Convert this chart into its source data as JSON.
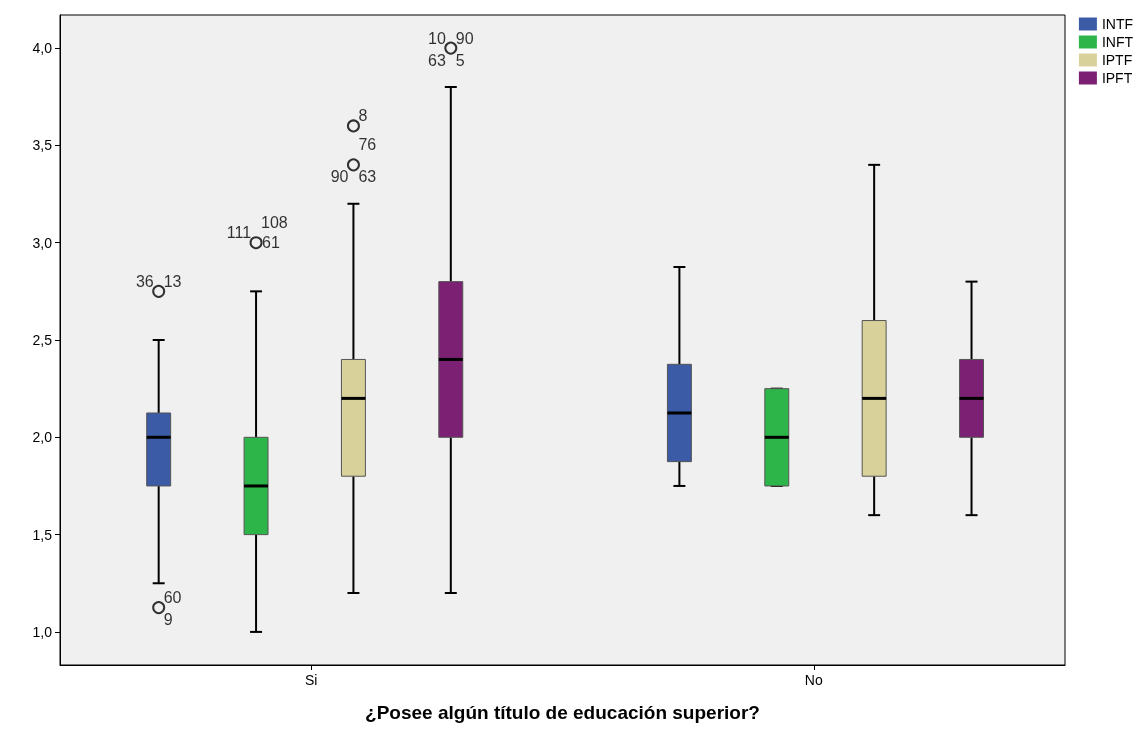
{
  "chart_data": {
    "type": "box",
    "xlabel": "¿Posee algún título de educación superior?",
    "categories": [
      "Si",
      "No"
    ],
    "ylim": [
      0.83,
      4.17
    ],
    "yticks": [
      {
        "value": 1,
        "label": "1,0"
      },
      {
        "value": 1.5,
        "label": "1,5"
      },
      {
        "value": 2,
        "label": "2,0"
      },
      {
        "value": 2.5,
        "label": "2,5"
      },
      {
        "value": 3,
        "label": "3,0"
      },
      {
        "value": 3.5,
        "label": "3,5"
      },
      {
        "value": 4,
        "label": "4,0"
      }
    ],
    "grid": false,
    "legend": "top right",
    "series": [
      {
        "name": "INTF",
        "color": "#3b5ba7",
        "boxes": [
          {
            "low": 1.25,
            "q1": 1.75,
            "median": 2.0,
            "q3": 2.125,
            "high": 2.5,
            "outliers": [
              2.75,
              1.125
            ]
          },
          {
            "low": 1.75,
            "q1": 1.875,
            "median": 2.125,
            "q3": 2.375,
            "high": 2.875
          }
        ]
      },
      {
        "name": "INFT",
        "color": "#2db54a",
        "boxes": [
          {
            "low": 1.0,
            "q1": 1.5,
            "median": 1.75,
            "q3": 2.0,
            "high": 2.75,
            "outliers": [
              3.0
            ]
          },
          {
            "low": 1.75,
            "q1": 1.75,
            "median": 2.0,
            "q3": 2.25,
            "high": 2.25
          }
        ]
      },
      {
        "name": "IPTF",
        "color": "#d9d19a",
        "boxes": [
          {
            "low": 1.2,
            "q1": 1.8,
            "median": 2.2,
            "q3": 2.4,
            "high": 3.2,
            "outliers": [
              3.4,
              3.6
            ]
          },
          {
            "low": 1.6,
            "q1": 1.8,
            "median": 2.2,
            "q3": 2.6,
            "high": 3.4
          }
        ]
      },
      {
        "name": "IPFT",
        "color": "#7b2073",
        "boxes": [
          {
            "low": 1.2,
            "q1": 2.0,
            "median": 2.4,
            "q3": 2.8,
            "high": 3.8,
            "outliers": [
              4.0
            ]
          },
          {
            "low": 1.6,
            "q1": 2.0,
            "median": 2.2,
            "q3": 2.4,
            "high": 2.8
          }
        ]
      }
    ],
    "annotations": [
      "36",
      "13",
      "60",
      "9",
      "111",
      "108",
      "61",
      "8",
      "76",
      "90",
      "63",
      "10",
      "90",
      "63",
      "5"
    ]
  }
}
